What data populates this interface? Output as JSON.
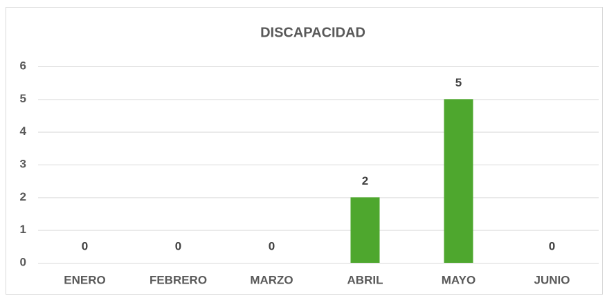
{
  "chart_data": {
    "type": "bar",
    "title": "DISCAPACIDAD",
    "categories": [
      "ENERO",
      "FEBRERO",
      "MARZO",
      "ABRIL",
      "MAYO",
      "JUNIO"
    ],
    "values": [
      0,
      0,
      0,
      2,
      5,
      0
    ],
    "color": "#4ea72e",
    "ylim": [
      0,
      6
    ],
    "yticks": [
      0,
      1,
      2,
      3,
      4,
      5,
      6
    ],
    "grid": true
  }
}
